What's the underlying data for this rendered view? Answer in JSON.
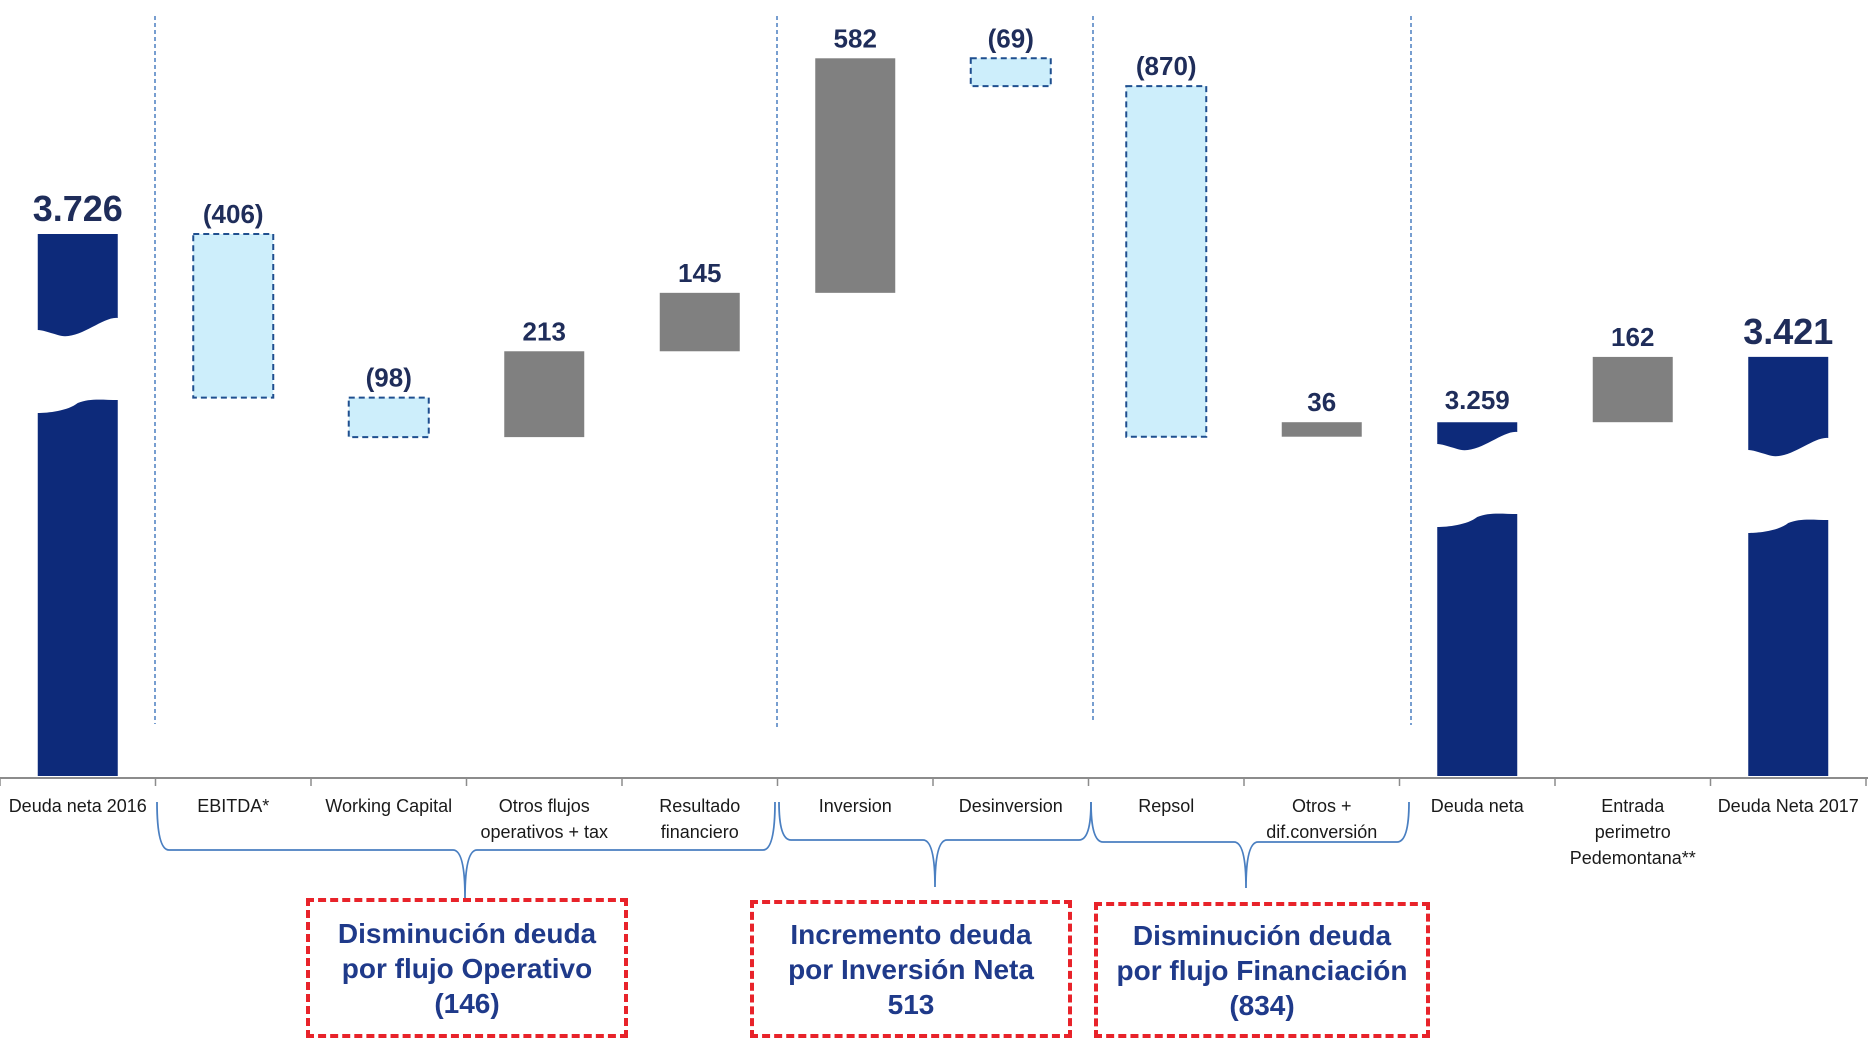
{
  "chart_data": {
    "type": "waterfall",
    "title": "",
    "categories": [
      "Deuda neta 2016",
      "EBITDA*",
      "Working Capital",
      "Otros flujos operativos + tax",
      "Resultado financiero",
      "Inversion",
      "Desinversion",
      "Repsol",
      "Otros + dif.conversión",
      "Deuda neta",
      "Entrada perimetro Pedemontana**",
      "Deuda Neta 2017"
    ],
    "category_lines": [
      [
        "Deuda neta 2016"
      ],
      [
        "EBITDA*"
      ],
      [
        "Working Capital"
      ],
      [
        "Otros flujos",
        "operativos + tax"
      ],
      [
        "Resultado",
        "financiero"
      ],
      [
        "Inversion"
      ],
      [
        "Desinversion"
      ],
      [
        "Repsol"
      ],
      [
        "Otros +",
        "dif.conversión"
      ],
      [
        "Deuda neta"
      ],
      [
        "Entrada",
        "perimetro",
        "Pedemontana**"
      ],
      [
        "Deuda Neta 2017"
      ]
    ],
    "values": [
      3726,
      -406,
      -98,
      213,
      145,
      582,
      -69,
      -870,
      36,
      3259,
      162,
      3421
    ],
    "kinds": [
      "total",
      "decrease",
      "decrease",
      "increase",
      "increase",
      "increase",
      "decrease",
      "decrease",
      "increase",
      "total",
      "increase",
      "total"
    ],
    "value_labels": [
      "3.726",
      "(406)",
      "(98)",
      "213",
      "145",
      "582",
      "(69)",
      "(870)",
      "36",
      "3.259",
      "162",
      "3.421"
    ],
    "axis_break": true,
    "colors": {
      "total": "#0d2a7a",
      "increase": "#808080",
      "decrease": "#cdeefb",
      "decrease_border": "#1f4f8f",
      "divider": "#4a7fc1",
      "summary_border": "#e8232a",
      "summary_text": "#1f3a8a",
      "label": "#1f2d5a"
    },
    "groups": [
      {
        "line1": "Disminución deuda",
        "line2": "por flujo Operativo",
        "value": "(146)",
        "categories": [
          "EBITDA*",
          "Working Capital",
          "Otros flujos operativos + tax",
          "Resultado financiero"
        ]
      },
      {
        "line1": "Incremento deuda",
        "line2": "por Inversión Neta",
        "value": "513",
        "categories": [
          "Inversion",
          "Desinversion"
        ]
      },
      {
        "line1": "Disminución deuda",
        "line2": "por flujo Financiación",
        "value": "(834)",
        "categories": [
          "Repsol",
          "Otros + dif.conversión"
        ]
      }
    ]
  }
}
